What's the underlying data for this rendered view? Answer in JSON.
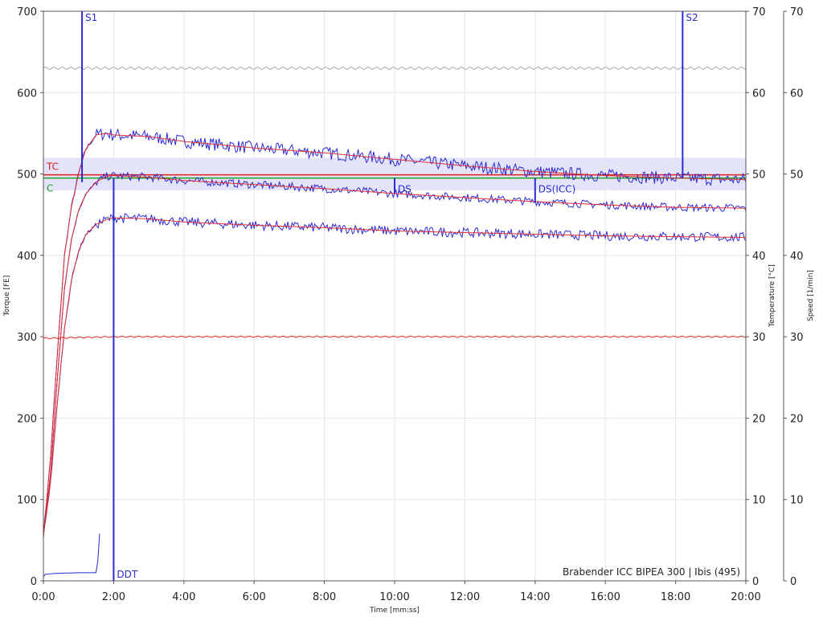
{
  "chart_data": {
    "type": "line",
    "footer": "Brabender ICC BIPEA 300 | Ibis (495)",
    "xlabel": "Time [mm:ss]",
    "ylabel_left": "Torque [FE]",
    "ylabel_right1": "Temperature [°C]",
    "ylabel_right2": "Speed [1/min]",
    "x_ticks": [
      "0:00",
      "2:00",
      "4:00",
      "6:00",
      "8:00",
      "10:00",
      "12:00",
      "14:00",
      "16:00",
      "18:00",
      "20:00"
    ],
    "xlim_min": [
      0,
      20
    ],
    "ylim_torque": [
      0,
      700
    ],
    "ylim_temperature": [
      0,
      70
    ],
    "ylim_speed": [
      0,
      70
    ],
    "y_ticks_torque": [
      "0",
      "100",
      "200",
      "300",
      "400",
      "500",
      "600",
      "700"
    ],
    "y_ticks_temperature": [
      "0",
      "10",
      "20",
      "30",
      "40",
      "50",
      "60",
      "70"
    ],
    "y_ticks_speed": [
      "0",
      "10",
      "20",
      "30",
      "40",
      "50",
      "60",
      "70"
    ],
    "grid": true,
    "band": {
      "torque_range": [
        480,
        520
      ],
      "color": "#d9d9f7"
    },
    "reference_lines": [
      {
        "label": "TC",
        "torque": 499,
        "color": "#e02020"
      },
      {
        "label": "C",
        "torque": 495,
        "color": "#20a020"
      }
    ],
    "markers": [
      {
        "label": "S1",
        "x_min": 1.1,
        "top_torque": 700,
        "bottom_torque": 490
      },
      {
        "label": "S2",
        "x_min": 18.2,
        "top_torque": 700,
        "bottom_torque": 495
      },
      {
        "label": "DDT",
        "x_min": 2.0,
        "top_torque": 495,
        "bottom_torque": 0
      },
      {
        "label": "DS",
        "x_min": 10.0,
        "top_torque": 495,
        "bottom_torque": 476
      },
      {
        "label": "DS(ICC)",
        "x_min": 14.0,
        "top_torque": 495,
        "bottom_torque": 465
      }
    ],
    "series": [
      {
        "color": "#2b2bd6",
        "smooth_color": "#e03030",
        "noise": 8,
        "x": [
          0,
          0.2,
          0.4,
          0.6,
          0.8,
          1.0,
          1.2,
          1.5,
          1.8,
          2.0,
          3.0,
          4.0,
          6.0,
          8.0,
          10.0,
          12.0,
          14.0,
          16.0,
          18.0,
          20.0
        ],
        "y": [
          55,
          150,
          280,
          400,
          460,
          500,
          530,
          548,
          550,
          548,
          546,
          540,
          532,
          526,
          518,
          510,
          503,
          498,
          495,
          493
        ]
      },
      {
        "color": "#2b2bd6",
        "smooth_color": "#e03030",
        "noise": 5,
        "x": [
          0,
          0.2,
          0.4,
          0.6,
          0.8,
          1.0,
          1.2,
          1.5,
          1.8,
          2.0,
          3.0,
          4.0,
          6.0,
          8.0,
          10.0,
          12.0,
          14.0,
          16.0,
          18.0,
          20.0
        ],
        "y": [
          55,
          130,
          250,
          360,
          420,
          455,
          475,
          490,
          497,
          498,
          496,
          492,
          487,
          482,
          476,
          471,
          466,
          462,
          459,
          458
        ]
      },
      {
        "color": "#2b2bd6",
        "smooth_color": "#e03030",
        "noise": 6,
        "x": [
          0,
          0.2,
          0.4,
          0.6,
          0.8,
          1.0,
          1.2,
          1.5,
          1.8,
          2.0,
          3.0,
          4.0,
          6.0,
          8.0,
          10.0,
          12.0,
          14.0,
          16.0,
          18.0,
          20.0
        ],
        "y": [
          55,
          120,
          220,
          310,
          370,
          405,
          425,
          438,
          444,
          446,
          445,
          441,
          437,
          434,
          430,
          428,
          426,
          424,
          423,
          422
        ]
      },
      {
        "axis": "temperature",
        "color": "#e03030",
        "noise": 0.08,
        "x": [
          0,
          1,
          2,
          4,
          8,
          12,
          16,
          20
        ],
        "y": [
          29.8,
          29.9,
          30.0,
          30.0,
          30.0,
          30.0,
          30.0,
          30.0
        ]
      },
      {
        "axis": "speed",
        "color": "#aaaaaa",
        "noise": 0.15,
        "x": [
          0,
          20
        ],
        "y": [
          63,
          63
        ]
      },
      {
        "axis": "torque",
        "color": "#2b2bd6",
        "noise": 0,
        "x": [
          0,
          0.05,
          0.3,
          0.6,
          1.0,
          1.5,
          1.55,
          1.6
        ],
        "y": [
          5,
          8,
          9,
          9.5,
          10,
          10,
          25,
          58
        ]
      }
    ]
  }
}
